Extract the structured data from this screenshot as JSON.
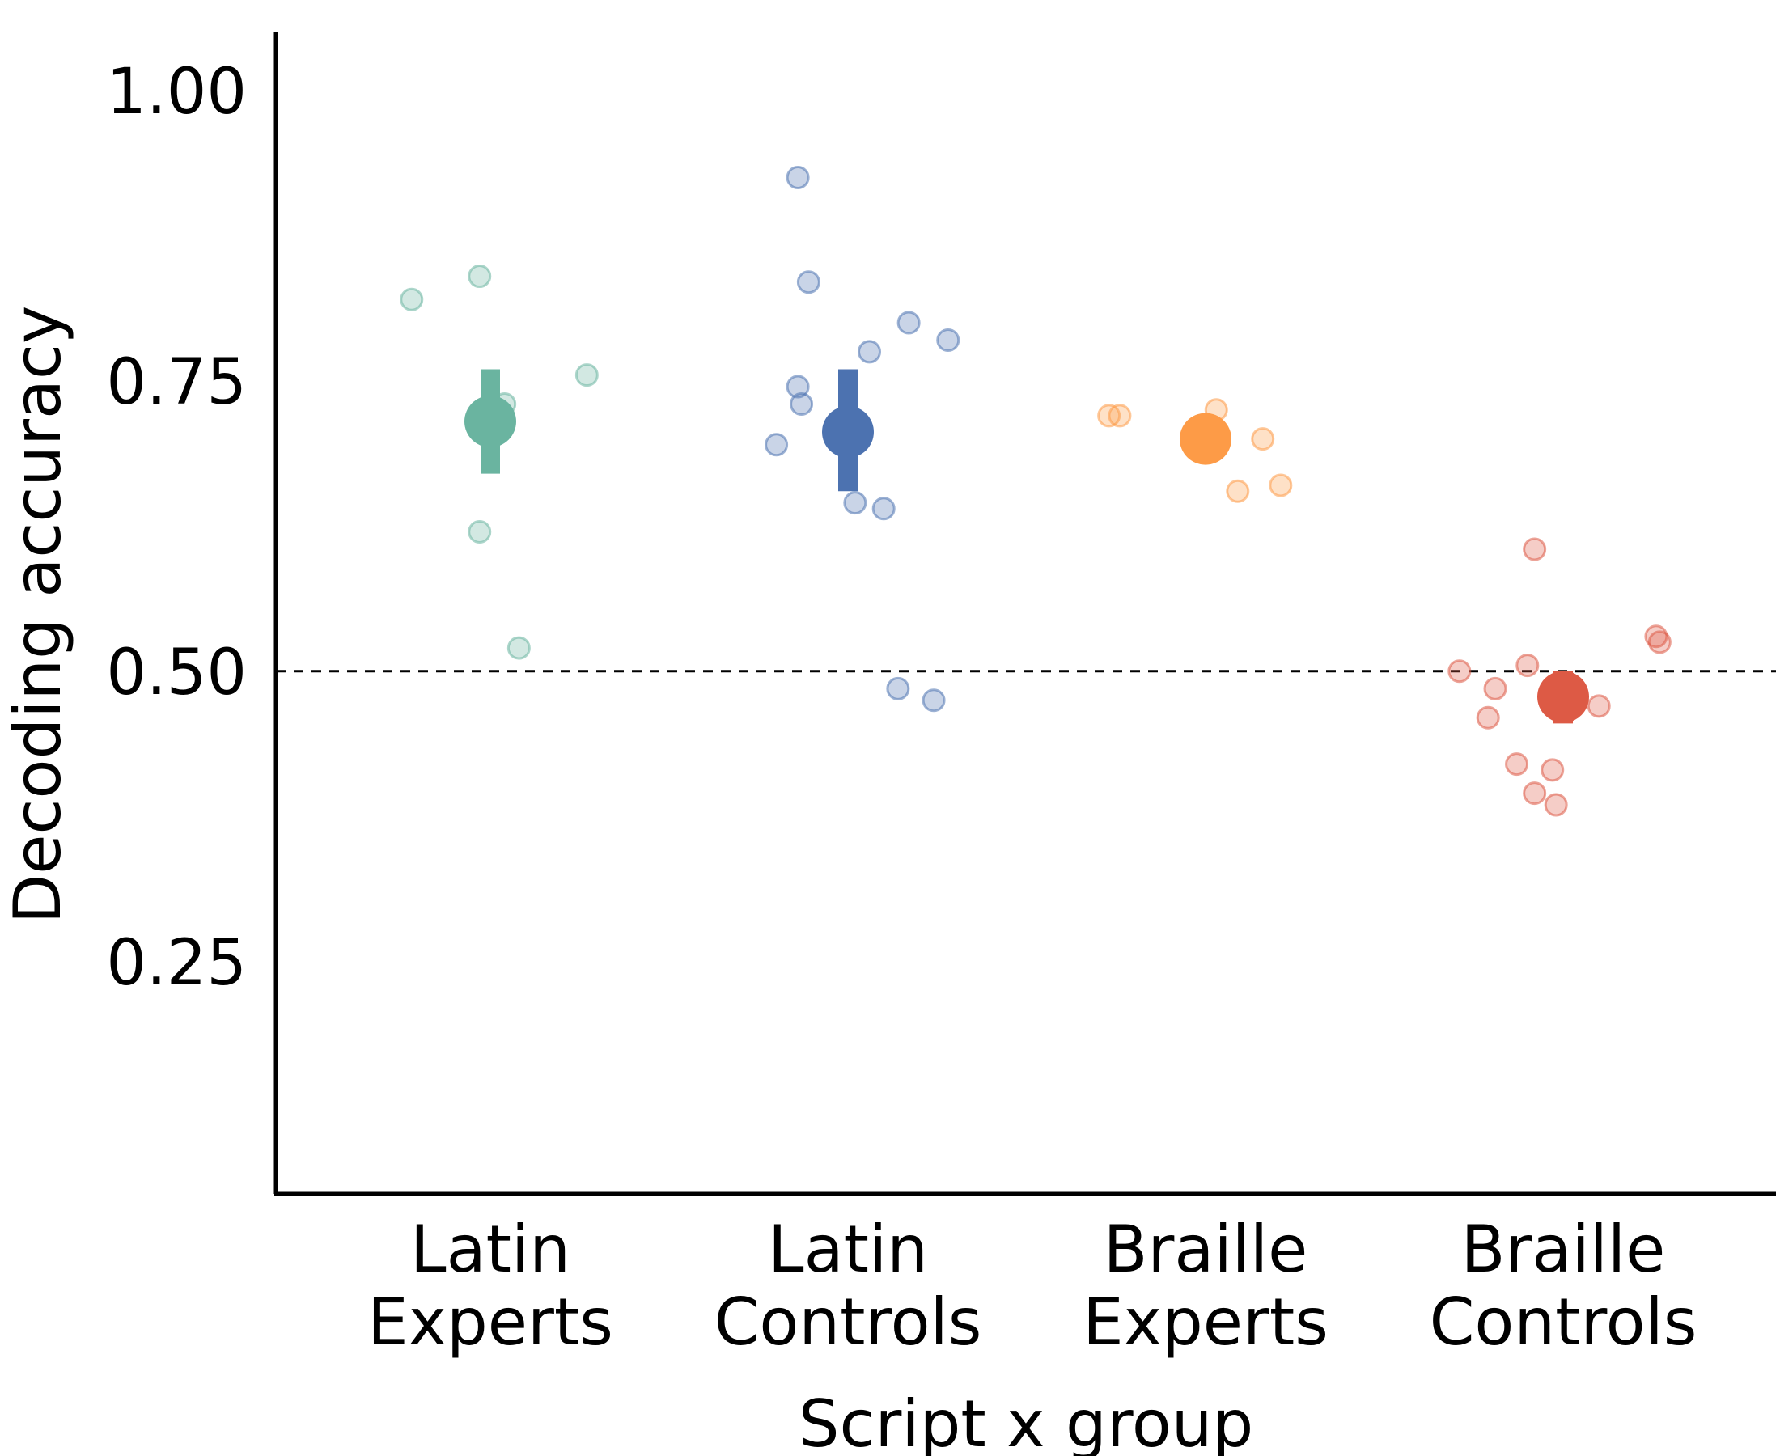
{
  "chart_data": {
    "type": "scatter",
    "xlabel": "Script x group",
    "ylabel": "Decoding accuracy",
    "ylim": [
      0.05,
      1.05
    ],
    "yticks": [
      0.25,
      0.5,
      0.75,
      1.0
    ],
    "ytick_labels": [
      "0.25",
      "0.50",
      "0.75",
      "1.00"
    ],
    "reference_line": 0.5,
    "grid": false,
    "legend": "none",
    "groups": [
      {
        "label_line1": "Latin",
        "label_line2": "Experts",
        "color": "#6ab4a0",
        "mean": 0.715,
        "ci_low": 0.67,
        "ci_high": 0.76,
        "points": [
          {
            "jitter": -0.22,
            "y": 0.82
          },
          {
            "jitter": -0.03,
            "y": 0.84
          },
          {
            "jitter": 0.27,
            "y": 0.755
          },
          {
            "jitter": 0.04,
            "y": 0.73
          },
          {
            "jitter": -0.03,
            "y": 0.62
          },
          {
            "jitter": 0.08,
            "y": 0.52
          }
        ]
      },
      {
        "label_line1": "Latin",
        "label_line2": "Controls",
        "color": "#4c72b0",
        "mean": 0.706,
        "ci_low": 0.655,
        "ci_high": 0.76,
        "points": [
          {
            "jitter": -0.14,
            "y": 0.925
          },
          {
            "jitter": -0.11,
            "y": 0.835
          },
          {
            "jitter": 0.17,
            "y": 0.8
          },
          {
            "jitter": 0.28,
            "y": 0.785
          },
          {
            "jitter": 0.06,
            "y": 0.775
          },
          {
            "jitter": -0.14,
            "y": 0.745
          },
          {
            "jitter": -0.13,
            "y": 0.73
          },
          {
            "jitter": -0.2,
            "y": 0.695
          },
          {
            "jitter": 0.02,
            "y": 0.645
          },
          {
            "jitter": 0.1,
            "y": 0.64
          },
          {
            "jitter": 0.14,
            "y": 0.485
          },
          {
            "jitter": 0.24,
            "y": 0.475
          }
        ]
      },
      {
        "label_line1": "Braille",
        "label_line2": "Experts",
        "color": "#fd9b47",
        "mean": 0.7,
        "ci_low": null,
        "ci_high": null,
        "points": [
          {
            "jitter": -0.27,
            "y": 0.72
          },
          {
            "jitter": -0.24,
            "y": 0.72
          },
          {
            "jitter": 0.03,
            "y": 0.725
          },
          {
            "jitter": 0.16,
            "y": 0.7
          },
          {
            "jitter": 0.09,
            "y": 0.655
          },
          {
            "jitter": 0.21,
            "y": 0.66
          }
        ]
      },
      {
        "label_line1": "Braille",
        "label_line2": "Controls",
        "color": "#dd5a45",
        "mean": 0.478,
        "ci_low": 0.455,
        "ci_high": 0.5,
        "points": [
          {
            "jitter": -0.08,
            "y": 0.605
          },
          {
            "jitter": 0.26,
            "y": 0.53
          },
          {
            "jitter": 0.27,
            "y": 0.525
          },
          {
            "jitter": -0.29,
            "y": 0.5
          },
          {
            "jitter": -0.1,
            "y": 0.505
          },
          {
            "jitter": -0.19,
            "y": 0.485
          },
          {
            "jitter": -0.21,
            "y": 0.46
          },
          {
            "jitter": 0.1,
            "y": 0.47
          },
          {
            "jitter": -0.13,
            "y": 0.42
          },
          {
            "jitter": -0.03,
            "y": 0.415
          },
          {
            "jitter": -0.08,
            "y": 0.395
          },
          {
            "jitter": -0.02,
            "y": 0.385
          }
        ]
      }
    ]
  }
}
